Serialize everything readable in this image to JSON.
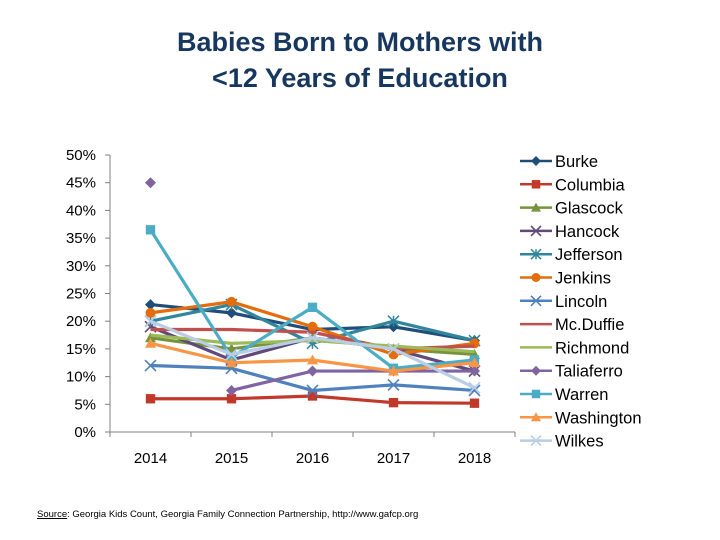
{
  "title_lines": [
    "Babies Born to Mothers with",
    "<12 Years of Education"
  ],
  "source": {
    "label": "Source",
    "text": ": Georgia Kids Count, Georgia Family Connection Partnership, http://www.gafcp.org"
  },
  "chart_data": {
    "type": "line",
    "title": "Babies Born to Mothers with <12 Years of Education",
    "categories": [
      "2014",
      "2015",
      "2016",
      "2017",
      "2018"
    ],
    "y_ticks": [
      "50%",
      "45%",
      "40%",
      "35%",
      "30%",
      "25%",
      "20%",
      "15%",
      "10%",
      "5%",
      "0%"
    ],
    "ylim": [
      0,
      50
    ],
    "y_unit": "%",
    "grid": false,
    "legend_position": "right",
    "series": [
      {
        "name": "Burke",
        "color": "#1f4e79",
        "marker": "diamond",
        "values": [
          23.0,
          21.5,
          18.5,
          19.0,
          16.5
        ]
      },
      {
        "name": "Columbia",
        "color": "#c0392b",
        "marker": "square",
        "values": [
          6.0,
          6.0,
          6.5,
          5.3,
          5.2
        ]
      },
      {
        "name": "Glascock",
        "color": "#77933c",
        "marker": "triangle",
        "values": [
          17.0,
          15.0,
          17.0,
          15.0,
          14.0
        ]
      },
      {
        "name": "Hancock",
        "color": "#604a7b",
        "marker": "x",
        "values": [
          19.0,
          13.0,
          17.0,
          15.0,
          11.0
        ]
      },
      {
        "name": "Jefferson",
        "color": "#31859c",
        "marker": "asterisk",
        "values": [
          20.0,
          23.0,
          16.0,
          20.0,
          16.5
        ]
      },
      {
        "name": "Jenkins",
        "color": "#e46c0a",
        "marker": "circle",
        "values": [
          21.5,
          23.5,
          19.0,
          14.0,
          16.0
        ]
      },
      {
        "name": "Lincoln",
        "color": "#4f81bd",
        "marker": "x",
        "values": [
          12.0,
          11.5,
          7.5,
          8.5,
          7.5
        ]
      },
      {
        "name": "Mc.Duffie",
        "color": "#c0504d",
        "marker": "none",
        "values": [
          18.5,
          18.5,
          18.0,
          15.0,
          15.5
        ]
      },
      {
        "name": "Richmond",
        "color": "#9bbb59",
        "marker": "none",
        "values": [
          17.5,
          16.0,
          16.5,
          15.5,
          14.5
        ]
      },
      {
        "name": "Taliaferro",
        "color": "#8064a2",
        "marker": "diamond",
        "values": [
          45.0,
          7.5,
          11.0,
          11.0,
          11.0
        ]
      },
      {
        "name": "Warren",
        "color": "#4bacc6",
        "marker": "square",
        "values": [
          36.5,
          13.5,
          22.5,
          11.5,
          13.0
        ]
      },
      {
        "name": "Washington",
        "color": "#f79646",
        "marker": "triangle",
        "values": [
          16.0,
          12.5,
          13.0,
          11.0,
          12.5
        ]
      },
      {
        "name": "Wilkes",
        "color": "#b9cde5",
        "marker": "x",
        "values": [
          20.0,
          14.0,
          17.0,
          15.0,
          8.0
        ]
      }
    ]
  }
}
